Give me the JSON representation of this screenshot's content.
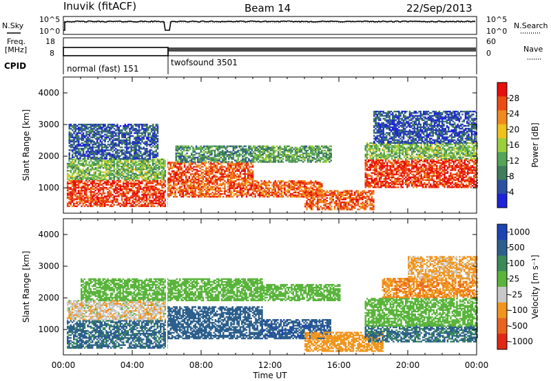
{
  "header": {
    "station": "Inuvik (fitACF)",
    "beam": "Beam 14",
    "date": "22/Sep/2013"
  },
  "noise_panel": {
    "left_label": "N.Sky",
    "right_label": "N.Search",
    "left_ticks": [
      "10^5",
      "10^0"
    ],
    "right_ticks": [
      "10^5",
      "10^0"
    ]
  },
  "freq_panel": {
    "left_label_line1": "Freq.",
    "left_label_line2": "[MHz]",
    "right_label": "Nave",
    "left_ticks": [
      "18",
      "8"
    ],
    "right_ticks": [
      "60",
      "0"
    ]
  },
  "cpid": {
    "label": "CPID",
    "modes": [
      {
        "name": "normal (fast) 151",
        "start_hour": 0.0,
        "end_hour": 6.0
      },
      {
        "name": "twofsound 3501",
        "start_hour": 6.0,
        "end_hour": 24.0
      }
    ]
  },
  "x_axis": {
    "label": "Time UT",
    "ticks": [
      "00:00",
      "04:00",
      "08:00",
      "12:00",
      "16:00",
      "20:00",
      "00:00"
    ]
  },
  "colors": {
    "frame": "#000000",
    "power_scale": [
      "#1e22d9",
      "#2c4fa0",
      "#3f7d5c",
      "#56a45a",
      "#9ccf3c",
      "#f0c21e",
      "#f08a1e",
      "#ec4c14",
      "#e80f0f"
    ],
    "velocity_scale": [
      "#1e44b4",
      "#2c5f8c",
      "#3a8a5a",
      "#5ab43c",
      "#c8c8c8",
      "#f0961e",
      "#e8641e",
      "#e02814"
    ]
  },
  "chart_data": [
    {
      "type": "heatmap",
      "title": "",
      "xlabel": "",
      "ylabel": "Slant Range [km]",
      "xlim": [
        0,
        24
      ],
      "ylim": [
        200,
        4500
      ],
      "yticks": [
        "1000",
        "2000",
        "3000",
        "4000"
      ],
      "colorbar": {
        "label": "Power [dB]",
        "ticks": [
          "28",
          "24",
          "20",
          "16",
          "12",
          "8",
          "4"
        ]
      },
      "echo_regions": [
        {
          "t0": 0.2,
          "t1": 6.0,
          "r0": 400,
          "r1": 1250,
          "level": 28
        },
        {
          "t0": 0.2,
          "t1": 6.0,
          "r0": 1250,
          "r1": 1900,
          "level": 14
        },
        {
          "t0": 0.3,
          "t1": 5.5,
          "r0": 1900,
          "r1": 3000,
          "level": 6
        },
        {
          "t0": 6.0,
          "t1": 11.0,
          "r0": 700,
          "r1": 1800,
          "level": 26
        },
        {
          "t0": 6.5,
          "t1": 11.0,
          "r0": 1800,
          "r1": 2300,
          "level": 10
        },
        {
          "t0": 11.0,
          "t1": 15.0,
          "r0": 700,
          "r1": 1200,
          "level": 26
        },
        {
          "t0": 11.0,
          "t1": 15.5,
          "r0": 1800,
          "r1": 2300,
          "level": 12
        },
        {
          "t0": 14.0,
          "t1": 18.0,
          "r0": 300,
          "r1": 900,
          "level": 26
        },
        {
          "t0": 17.5,
          "t1": 24.0,
          "r0": 1000,
          "r1": 1900,
          "level": 28
        },
        {
          "t0": 17.5,
          "t1": 24.0,
          "r0": 1900,
          "r1": 2400,
          "level": 14
        },
        {
          "t0": 18.0,
          "t1": 24.0,
          "r0": 2400,
          "r1": 3400,
          "level": 5
        }
      ]
    },
    {
      "type": "heatmap",
      "title": "",
      "xlabel": "Time UT",
      "ylabel": "Slant Range [km]",
      "xlim": [
        0,
        24
      ],
      "ylim": [
        200,
        4500
      ],
      "yticks": [
        "1000",
        "2000",
        "3000",
        "4000"
      ],
      "colorbar": {
        "label": "Velocity [m s⁻¹]",
        "ticks": [
          "1000",
          "500",
          "100",
          "25",
          "-25",
          "-100",
          "-500",
          "-1000"
        ]
      },
      "echo_regions": [
        {
          "t0": 0.2,
          "t1": 6.0,
          "r0": 400,
          "r1": 1300,
          "level": 150
        },
        {
          "t0": 0.2,
          "t1": 6.0,
          "r0": 1300,
          "r1": 1900,
          "level": -80
        },
        {
          "t0": 1.0,
          "t1": 6.0,
          "r0": 1900,
          "r1": 2600,
          "level": 0
        },
        {
          "t0": 6.0,
          "t1": 11.5,
          "r0": 700,
          "r1": 1700,
          "level": 300
        },
        {
          "t0": 6.0,
          "t1": 11.5,
          "r0": 1900,
          "r1": 2600,
          "level": 0
        },
        {
          "t0": 11.5,
          "t1": 15.5,
          "r0": 700,
          "r1": 1300,
          "level": 400
        },
        {
          "t0": 11.5,
          "t1": 16.0,
          "r0": 1900,
          "r1": 2400,
          "level": 0
        },
        {
          "t0": 14.0,
          "t1": 18.5,
          "r0": 300,
          "r1": 900,
          "level": -250
        },
        {
          "t0": 17.5,
          "t1": 24.0,
          "r0": 600,
          "r1": 1100,
          "level": 120
        },
        {
          "t0": 17.5,
          "t1": 24.0,
          "r0": 1100,
          "r1": 2000,
          "level": 0
        },
        {
          "t0": 18.5,
          "t1": 24.0,
          "r0": 2000,
          "r1": 2600,
          "level": -400
        },
        {
          "t0": 20.0,
          "t1": 24.0,
          "r0": 2600,
          "r1": 3300,
          "level": -150
        }
      ]
    }
  ]
}
